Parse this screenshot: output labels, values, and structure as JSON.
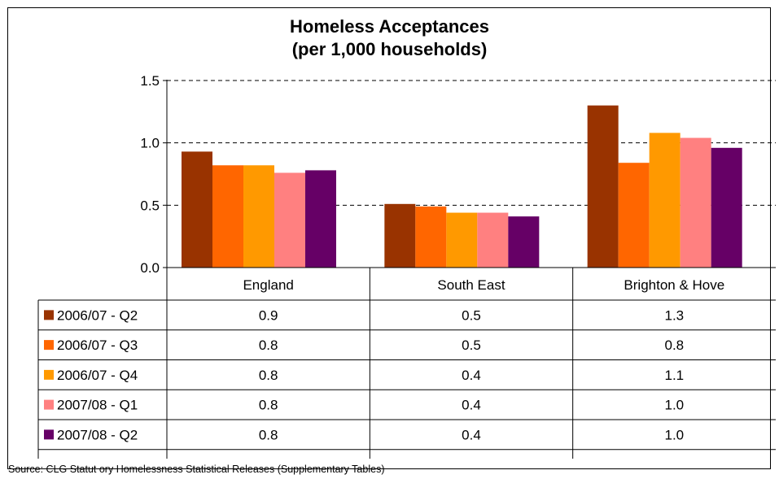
{
  "chart_data": {
    "type": "bar",
    "title": [
      "Homeless Acceptances",
      "(per 1,000 households)"
    ],
    "categories": [
      "England",
      "South East",
      "Brighton & Hove"
    ],
    "ylim": [
      0,
      1.5
    ],
    "yticks": [
      "0.0",
      "0.5",
      "1.0",
      "1.5"
    ],
    "grid": "dashed horizontal",
    "legend": "data table below chart",
    "series": [
      {
        "name": "2006/07 - Q2",
        "color": "#993300",
        "values": [
          0.93,
          0.51,
          1.3
        ],
        "labels": [
          "0.9",
          "0.5",
          "1.3"
        ]
      },
      {
        "name": "2006/07 - Q3",
        "color": "#ff6600",
        "values": [
          0.82,
          0.49,
          0.84
        ],
        "labels": [
          "0.8",
          "0.5",
          "0.8"
        ]
      },
      {
        "name": "2006/07 - Q4",
        "color": "#ff9900",
        "values": [
          0.82,
          0.44,
          1.08
        ],
        "labels": [
          "0.8",
          "0.4",
          "1.1"
        ]
      },
      {
        "name": "2007/08 - Q1",
        "color": "#ff8080",
        "values": [
          0.76,
          0.44,
          1.04
        ],
        "labels": [
          "0.8",
          "0.4",
          "1.0"
        ]
      },
      {
        "name": "2007/08 - Q2",
        "color": "#660066",
        "values": [
          0.78,
          0.41,
          0.96
        ],
        "labels": [
          "0.8",
          "0.4",
          "1.0"
        ]
      }
    ],
    "source": "Source: CLG Statut ory Homelessness Statistical Releases (Supplementary Tables)"
  }
}
